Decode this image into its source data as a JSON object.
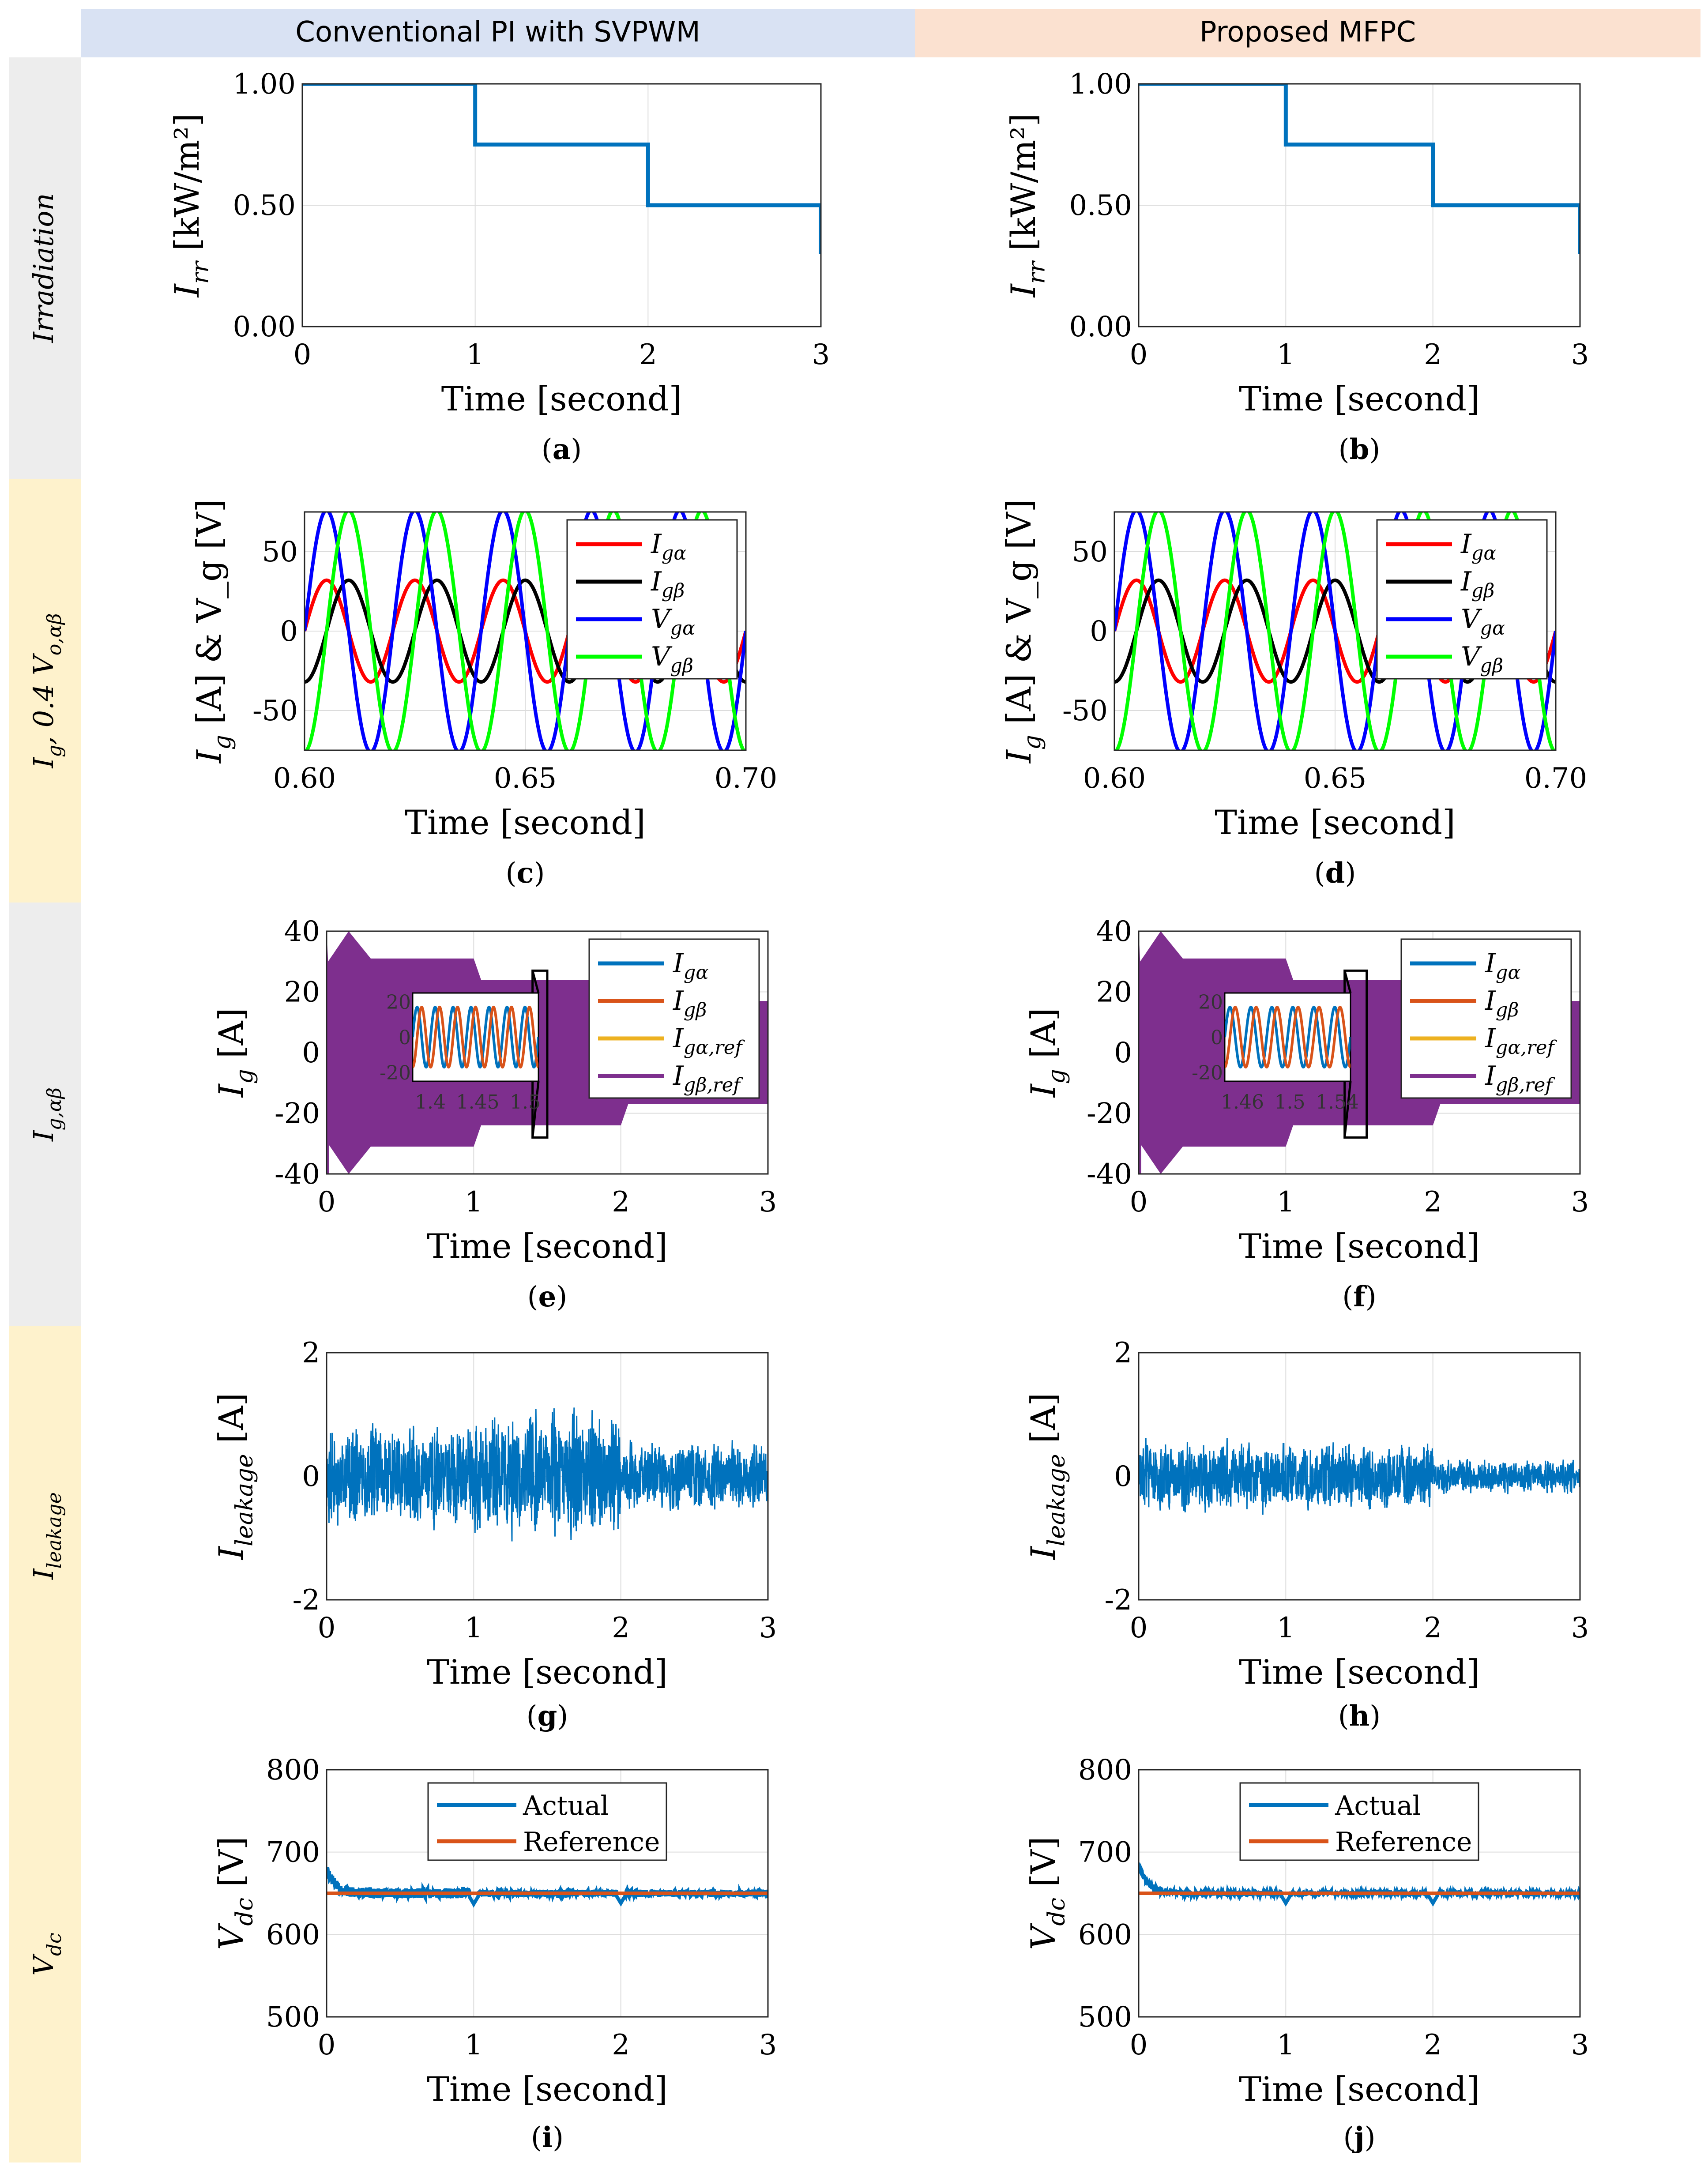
{
  "headers": {
    "left": "Conventional PI with SVPWM",
    "right": "Proposed MFPC"
  },
  "row_labels": [
    {
      "id": "irr",
      "main": "Irradiation",
      "sub": ""
    },
    {
      "id": "ivg",
      "main": "I",
      "sub": "g",
      "suffix": ", 0.4 V",
      "suffix_sub": "o,αβ"
    },
    {
      "id": "iab",
      "main": "I",
      "sub": "g,αβ"
    },
    {
      "id": "ileak",
      "main": "I",
      "sub": "leakage"
    },
    {
      "id": "vdc",
      "main": "V",
      "sub": "dc"
    }
  ],
  "colors": {
    "blue": "#0072BD",
    "orange": "#D95319",
    "yellow": "#EDB120",
    "purple": "#7E2F8E",
    "red": "#FF0000",
    "black": "#000000",
    "pure_blue": "#0000FF",
    "green": "#00FF00",
    "header_left": "#D9E2F3",
    "header_right": "#FBE1D0",
    "band_gray": "#EDEDED",
    "band_yellow": "#FEF2CC"
  },
  "chart_data": [
    {
      "id": "a",
      "caption": "a",
      "type": "line",
      "title": "",
      "xlabel": "Time [second]",
      "ylabel": "I_rr [kW/m²]",
      "xlim": [
        0,
        3
      ],
      "ylim": [
        0,
        1
      ],
      "xticks": [
        "0",
        "1",
        "2",
        "3"
      ],
      "yticks": [
        "0.00",
        "0.50",
        "1.00"
      ],
      "series": [
        {
          "name": "Irradiation",
          "color": "#0072BD",
          "x": [
            0,
            1,
            1,
            2,
            2,
            3,
            3
          ],
          "y": [
            1.0,
            1.0,
            0.75,
            0.75,
            0.5,
            0.5,
            0.3
          ]
        }
      ]
    },
    {
      "id": "b",
      "caption": "b",
      "type": "line",
      "title": "",
      "xlabel": "Time [second]",
      "ylabel": "I_rr [kW/m²]",
      "xlim": [
        0,
        3
      ],
      "ylim": [
        0,
        1
      ],
      "xticks": [
        "0",
        "1",
        "2",
        "3"
      ],
      "yticks": [
        "0.00",
        "0.50",
        "1.00"
      ],
      "series": [
        {
          "name": "Irradiation",
          "color": "#0072BD",
          "x": [
            0,
            1,
            1,
            2,
            2,
            3,
            3
          ],
          "y": [
            1.0,
            1.0,
            0.75,
            0.75,
            0.5,
            0.5,
            0.3
          ]
        }
      ]
    },
    {
      "id": "c",
      "caption": "c",
      "type": "line",
      "xlabel": "Time [second]",
      "ylabel": "I_g [A] & V_g [V]",
      "xlim": [
        0.6,
        0.7
      ],
      "ylim": [
        -75,
        75
      ],
      "xticks": [
        "0.60",
        "0.65",
        "0.70"
      ],
      "yticks": [
        "-50",
        "0",
        "50"
      ],
      "legend": "top-right",
      "frequency_hz": 50,
      "series": [
        {
          "name": "I_gα",
          "color": "#FF0000",
          "amplitude": 32,
          "phase_deg": 0
        },
        {
          "name": "I_gβ",
          "color": "#000000",
          "amplitude": 32,
          "phase_deg": -90
        },
        {
          "name": "V_gα",
          "color": "#0000FF",
          "amplitude": 76,
          "phase_deg": 0
        },
        {
          "name": "V_gβ",
          "color": "#00FF00",
          "amplitude": 76,
          "phase_deg": -90
        }
      ]
    },
    {
      "id": "d",
      "caption": "d",
      "type": "line",
      "xlabel": "Time [second]",
      "ylabel": "I_g [A] & V_g [V]",
      "xlim": [
        0.6,
        0.7
      ],
      "ylim": [
        -75,
        75
      ],
      "xticks": [
        "0.60",
        "0.65",
        "0.70"
      ],
      "yticks": [
        "-50",
        "0",
        "50"
      ],
      "legend": "top-right",
      "frequency_hz": 50,
      "series": [
        {
          "name": "I_gα",
          "color": "#FF0000",
          "amplitude": 32,
          "phase_deg": 0
        },
        {
          "name": "I_gβ",
          "color": "#000000",
          "amplitude": 32,
          "phase_deg": -90
        },
        {
          "name": "V_gα",
          "color": "#0000FF",
          "amplitude": 76,
          "phase_deg": 0
        },
        {
          "name": "V_gβ",
          "color": "#00FF00",
          "amplitude": 76,
          "phase_deg": -90
        }
      ]
    },
    {
      "id": "e",
      "caption": "e",
      "type": "area",
      "xlabel": "Time [second]",
      "ylabel": "I_g [A]",
      "xlim": [
        0,
        3
      ],
      "ylim": [
        -40,
        40
      ],
      "xticks": [
        "0",
        "1",
        "2",
        "3"
      ],
      "yticks": [
        "-40",
        "-20",
        "0",
        "20",
        "40"
      ],
      "legend": "top-right",
      "envelope": {
        "t": [
          0.0,
          0.01,
          0.15,
          0.3,
          1.0,
          1.05,
          1.1,
          2.0,
          2.05,
          2.1,
          3.0
        ],
        "amp": [
          40,
          30,
          40,
          31,
          31,
          24,
          24,
          24,
          17,
          17,
          17
        ]
      },
      "series": [
        {
          "name": "I_gα",
          "color": "#0072BD"
        },
        {
          "name": "I_gβ",
          "color": "#D95319"
        },
        {
          "name": "I_gα,ref",
          "color": "#EDB120"
        },
        {
          "name": "I_gβ,ref",
          "color": "#7E2F8E"
        }
      ],
      "inset": {
        "xlim": [
          1.38,
          1.52
        ],
        "ylim": [
          -25,
          25
        ],
        "xticks": [
          "1.4",
          "1.45",
          "1.5"
        ],
        "yticks": [
          "-20",
          "0",
          "20"
        ],
        "amplitude": 17,
        "frequency_hz": 50,
        "zoom_range": [
          1.4,
          1.5
        ]
      }
    },
    {
      "id": "f",
      "caption": "f",
      "type": "area",
      "xlabel": "Time [second]",
      "ylabel": "I_g [A]",
      "xlim": [
        0,
        3
      ],
      "ylim": [
        -40,
        40
      ],
      "xticks": [
        "0",
        "1",
        "2",
        "3"
      ],
      "yticks": [
        "-40",
        "-20",
        "0",
        "20",
        "40"
      ],
      "legend": "top-right",
      "envelope": {
        "t": [
          0.0,
          0.01,
          0.15,
          0.3,
          1.0,
          1.05,
          1.1,
          2.0,
          2.05,
          2.1,
          3.0
        ],
        "amp": [
          40,
          30,
          40,
          31,
          31,
          24,
          24,
          24,
          17,
          17,
          17
        ]
      },
      "series": [
        {
          "name": "I_gα",
          "color": "#0072BD"
        },
        {
          "name": "I_gβ",
          "color": "#D95319"
        },
        {
          "name": "I_gα,ref",
          "color": "#EDB120"
        },
        {
          "name": "I_gβ,ref",
          "color": "#7E2F8E"
        }
      ],
      "inset": {
        "xlim": [
          1.44,
          1.56
        ],
        "ylim": [
          -25,
          25
        ],
        "xticks": [
          "1.46",
          "1.5",
          "1.54"
        ],
        "yticks": [
          "-20",
          "0",
          "20"
        ],
        "amplitude": 17,
        "frequency_hz": 50,
        "zoom_range": [
          1.4,
          1.55
        ]
      }
    },
    {
      "id": "g",
      "caption": "g",
      "type": "line",
      "xlabel": "Time [second]",
      "ylabel": "I_leakage [A]",
      "xlim": [
        0,
        3
      ],
      "ylim": [
        -2,
        2
      ],
      "xticks": [
        "0",
        "1",
        "2",
        "3"
      ],
      "yticks": [
        "-2",
        "0",
        "2"
      ],
      "noise": {
        "seed": 11,
        "segments": [
          [
            0,
            1,
            1.0
          ],
          [
            1,
            2,
            1.25
          ],
          [
            2,
            3,
            0.7
          ]
        ]
      },
      "series": [
        {
          "name": "I_leakage",
          "color": "#0072BD"
        }
      ]
    },
    {
      "id": "h",
      "caption": "h",
      "type": "line",
      "xlabel": "Time [second]",
      "ylabel": "I_leakage [A]",
      "xlim": [
        0,
        3
      ],
      "ylim": [
        -2,
        2
      ],
      "xticks": [
        "0",
        "1",
        "2",
        "3"
      ],
      "yticks": [
        "-2",
        "0",
        "2"
      ],
      "noise": {
        "seed": 23,
        "segments": [
          [
            0,
            1,
            0.7
          ],
          [
            1,
            2,
            0.65
          ],
          [
            2,
            3,
            0.35
          ]
        ]
      },
      "series": [
        {
          "name": "I_leakage",
          "color": "#0072BD"
        }
      ]
    },
    {
      "id": "i",
      "caption": "i",
      "type": "line",
      "xlabel": "Time [second]",
      "ylabel": "V_dc [V]",
      "xlim": [
        0,
        3
      ],
      "ylim": [
        500,
        800
      ],
      "xticks": [
        "0",
        "1",
        "2",
        "3"
      ],
      "yticks": [
        "500",
        "600",
        "700",
        "800"
      ],
      "legend": "top-center",
      "reference": 650,
      "overshoot": 680,
      "ripple": 6,
      "dips": [
        [
          1.0,
          637
        ],
        [
          2.0,
          638
        ]
      ],
      "series": [
        {
          "name": "Actual",
          "color": "#0072BD"
        },
        {
          "name": "Reference",
          "color": "#D95319"
        }
      ]
    },
    {
      "id": "j",
      "caption": "j",
      "type": "line",
      "xlabel": "Time [second]",
      "ylabel": "V_dc [V]",
      "xlim": [
        0,
        3
      ],
      "ylim": [
        500,
        800
      ],
      "xticks": [
        "0",
        "1",
        "2",
        "3"
      ],
      "yticks": [
        "500",
        "600",
        "700",
        "800"
      ],
      "legend": "top-center",
      "reference": 650,
      "overshoot": 685,
      "ripple": 3,
      "dips": [
        [
          1.0,
          638
        ],
        [
          2.0,
          638
        ]
      ],
      "series": [
        {
          "name": "Actual",
          "color": "#0072BD"
        },
        {
          "name": "Reference",
          "color": "#D95319"
        }
      ]
    }
  ]
}
